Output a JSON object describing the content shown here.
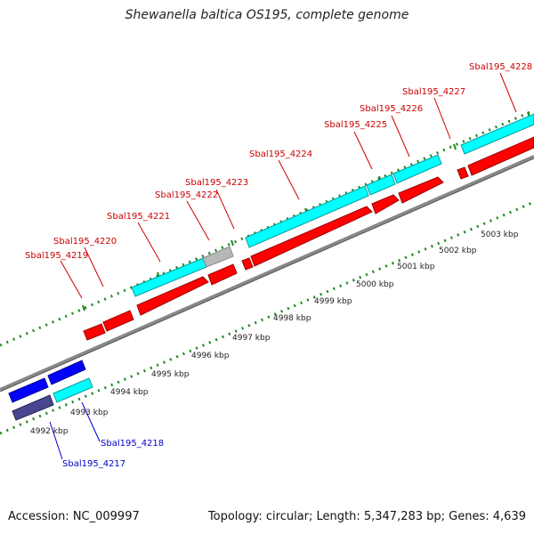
{
  "title": "Shewanella baltica OS195, complete genome",
  "footer": {
    "accession": "Accession: NC_009997",
    "summary": "Topology: circular; Length: 5,347,283 bp; Genes: 4,639"
  },
  "colors": {
    "forward_gene": "#ff0000",
    "forward_cds": "#00ffff",
    "reverse_gene": "#0000ff",
    "reverse_cds": "#484890",
    "pseudo": "#b8b8b8",
    "backbone": "#888888",
    "tick": "#228822",
    "forward_label": "#cc0000",
    "reverse_label": "#0000cc"
  },
  "scale_labels": [
    "4992 kbp",
    "4993 kbp",
    "4994 kbp",
    "4995 kbp",
    "4996 kbp",
    "4997 kbp",
    "4998 kbp",
    "4999 kbp",
    "5000 kbp",
    "5001 kbp",
    "5002 kbp",
    "5003 kbp"
  ],
  "forward_gene_labels": [
    "Sbal195_4219",
    "Sbal195_4220",
    "Sbal195_4221",
    "Sbal195_4222",
    "Sbal195_4223",
    "Sbal195_4224",
    "Sbal195_4225",
    "Sbal195_4226",
    "Sbal195_4227",
    "Sbal195_4228"
  ],
  "reverse_gene_labels": [
    "Sbal195_4217",
    "Sbal195_4218"
  ]
}
